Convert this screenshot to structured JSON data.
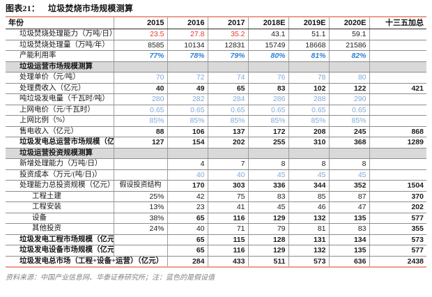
{
  "figure_label": "图表21：",
  "chart_data": {
    "type": "table",
    "title": "垃圾焚烧市场规模测算",
    "columns": [
      "年份",
      "2015",
      "2016",
      "2017",
      "2018E",
      "2019E",
      "2020E",
      "十三五加总"
    ],
    "rows": [
      {
        "label": "垃圾焚烧处理能力（万吨/日）",
        "cells": [
          "23.5",
          "27.8",
          "35.2",
          "43.1",
          "51.1",
          "59.1",
          ""
        ],
        "cls": [
          "red",
          "red",
          "red",
          "",
          "",
          "",
          ""
        ]
      },
      {
        "label": "垃圾焚烧处理量（万吨/年）",
        "cells": [
          "8585",
          "10134",
          "12831",
          "15749",
          "18668",
          "21586",
          ""
        ]
      },
      {
        "label": "产能利用率",
        "cells": [
          "77%",
          "78%",
          "79%",
          "80%",
          "81%",
          "82%",
          ""
        ],
        "cls_all": "bi"
      },
      {
        "section": "垃圾运营市场规模测算"
      },
      {
        "label": "处理单价（元/吨）",
        "cells": [
          "70",
          "72",
          "74",
          "76",
          "78",
          "80",
          ""
        ],
        "cls_all": "blue"
      },
      {
        "label": "处理费收入（亿元）",
        "cells": [
          "40",
          "49",
          "65",
          "83",
          "102",
          "122",
          "421"
        ],
        "cls_all": "b"
      },
      {
        "label": "吨垃圾发电量（千瓦时/吨）",
        "cells": [
          "280",
          "282",
          "284",
          "286",
          "288",
          "290",
          ""
        ],
        "cls_all": "blue"
      },
      {
        "label": "上网电价（元/千瓦时）",
        "cells": [
          "0.65",
          "0.65",
          "0.65",
          "0.65",
          "0.65",
          "0.65",
          ""
        ],
        "cls_all": "blue"
      },
      {
        "label": "上网比例（%）",
        "cells": [
          "85%",
          "85%",
          "85%",
          "85%",
          "85%",
          "85%",
          ""
        ],
        "cls_all": "blue"
      },
      {
        "label": "售电收入（亿元）",
        "cells": [
          "88",
          "106",
          "137",
          "172",
          "208",
          "245",
          "868"
        ],
        "cls_all": "b"
      },
      {
        "label": "垃圾发电总运营市场规模（亿元）",
        "label_cls": "b",
        "cells": [
          "127",
          "154",
          "202",
          "255",
          "310",
          "368",
          "1289"
        ],
        "cls_all": "b"
      },
      {
        "section": "垃圾运营投资规模测算"
      },
      {
        "label": "新增处理能力（万吨/日）",
        "cells": [
          "",
          "4",
          "7",
          "8",
          "8",
          "8",
          ""
        ]
      },
      {
        "label": "投资成本（万元/(吨/日)）",
        "cells": [
          "",
          "40",
          "40",
          "45",
          "45",
          "45",
          ""
        ],
        "cls_all": "blue"
      },
      {
        "label": "处理能力总投资规模（亿元）",
        "cells": [
          "假设投资结构",
          "170",
          "303",
          "336",
          "344",
          "352",
          "1504"
        ],
        "cls": [
          "kai",
          "b",
          "b",
          "b",
          "b",
          "b",
          "b"
        ]
      },
      {
        "label": "工程土建",
        "label_cls": "ind",
        "cells": [
          "25%",
          "42",
          "75",
          "83",
          "85",
          "87",
          "370"
        ],
        "cls": [
          "",
          "",
          "",
          "",
          "",
          "",
          "b"
        ]
      },
      {
        "label": "工程安装",
        "label_cls": "ind",
        "cells": [
          "13%",
          "23",
          "41",
          "45",
          "46",
          "47",
          "202"
        ],
        "cls": [
          "",
          "",
          "",
          "",
          "",
          "",
          "b"
        ]
      },
      {
        "label": "设备",
        "label_cls": "ind",
        "cells": [
          "38%",
          "65",
          "116",
          "129",
          "132",
          "135",
          "577"
        ],
        "cls": [
          "",
          "b",
          "b",
          "b",
          "b",
          "b",
          "b"
        ]
      },
      {
        "label": "其他投资",
        "label_cls": "ind",
        "cells": [
          "24%",
          "40",
          "71",
          "79",
          "81",
          "83",
          "355"
        ],
        "cls": [
          "",
          "",
          "",
          "",
          "",
          "",
          "b"
        ]
      },
      {
        "label": "垃圾发电工程市场规模（亿元）",
        "label_cls": "b",
        "cells": [
          "",
          "65",
          "115",
          "128",
          "131",
          "134",
          "573"
        ],
        "cls_all": "b"
      },
      {
        "label": "垃圾发电设备市场规模（亿元）",
        "label_cls": "b",
        "cells": [
          "",
          "65",
          "116",
          "129",
          "132",
          "135",
          "577"
        ],
        "cls_all": "b"
      },
      {
        "label": "垃圾发电总市场（工程+设备+运营）（亿元）",
        "label_cls": "b",
        "merge": true,
        "cells": [
          "284",
          "433",
          "511",
          "573",
          "636",
          "2438"
        ],
        "cls_all": "b"
      }
    ],
    "footnote": "资料来源：中国产业信息网、华泰证券研究所；注：蓝色的是假设值"
  },
  "colors": {
    "accent_line": "#ED9B8D",
    "highlight_red": "#EE3524",
    "assumption_blue": "#7FA8DC",
    "ratio_blue": "#2E7FD6",
    "section_bg": "#D9D9D9",
    "note_gray": "#808080"
  }
}
